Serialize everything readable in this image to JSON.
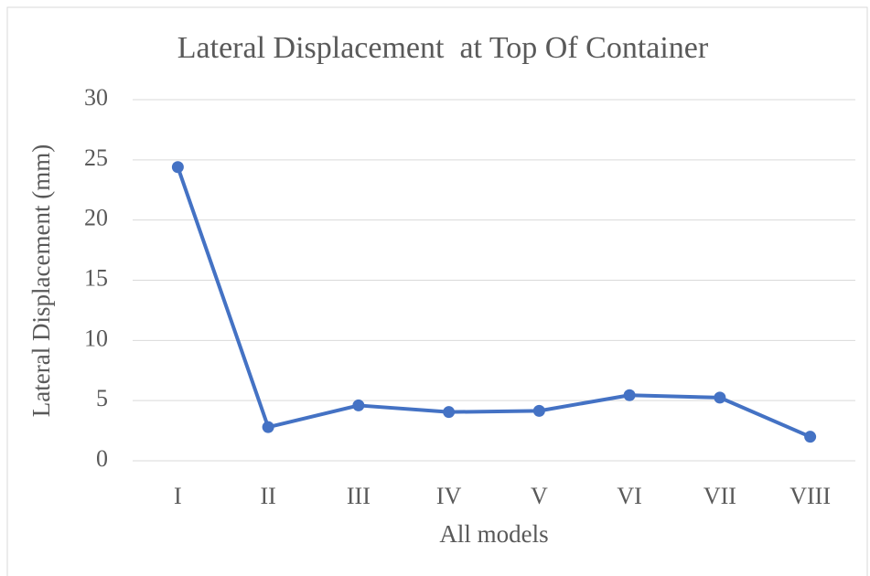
{
  "chart_data": {
    "type": "line",
    "title": "Lateral Displacement  at Top Of Container",
    "x_label": "All models",
    "y_label": "Lateral Displacement (mm)",
    "categories": [
      "I",
      "II",
      "III",
      "IV",
      "V",
      "VI",
      "VII",
      "VIII"
    ],
    "series": [
      {
        "name": "Lateral Displacement",
        "color": "#4472c4",
        "values": [
          24.4,
          2.8,
          4.6,
          4.05,
          4.15,
          5.45,
          5.25,
          2.0
        ]
      }
    ],
    "ylim": [
      0,
      30
    ],
    "yticks": [
      0,
      5,
      10,
      15,
      20,
      25,
      30
    ],
    "grid": true
  }
}
